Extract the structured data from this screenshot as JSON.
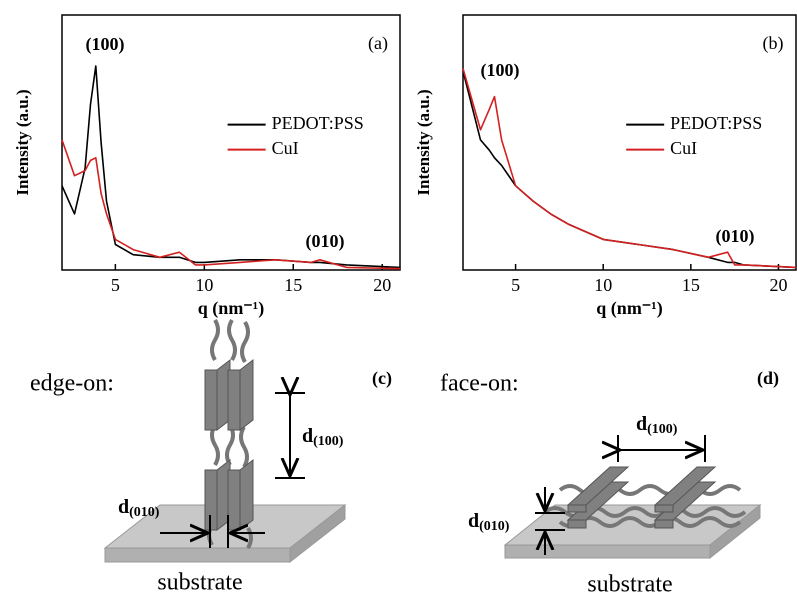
{
  "chart_data": [
    {
      "type": "line",
      "panel_label": "(a)",
      "x_label": "q (nm⁻¹)",
      "y_label": "Intensity (a.u.)",
      "xlim": [
        2,
        21
      ],
      "xticks": [
        5,
        10,
        15,
        20
      ],
      "ylim": [
        0,
        100
      ],
      "legend_position": "center-right",
      "annotations": [
        "(100)",
        "(010)"
      ],
      "x": [
        2,
        2.7,
        3.3,
        3.6,
        3.9,
        4.2,
        4.5,
        5,
        6,
        7.5,
        8.6,
        9.5,
        10,
        12,
        14,
        16,
        16.5,
        18,
        21
      ],
      "series": [
        {
          "name": "PEDOT:PSS",
          "color": "#000000",
          "values": [
            33,
            22,
            40,
            65,
            80,
            50,
            27,
            10,
            6,
            5,
            5,
            3,
            3,
            4,
            4,
            3,
            3,
            2,
            1
          ]
        },
        {
          "name": "CuI",
          "color": "#d42020",
          "values": [
            51,
            37,
            39,
            43,
            44,
            30,
            22,
            12,
            8,
            5,
            7,
            2,
            2,
            3,
            4,
            3,
            4,
            1,
            0.5
          ]
        }
      ]
    },
    {
      "type": "line",
      "panel_label": "(b)",
      "x_label": "q (nm⁻¹)",
      "y_label": "Intensity (a.u.)",
      "xlim": [
        2,
        21
      ],
      "xticks": [
        5,
        10,
        15,
        20
      ],
      "ylim": [
        0,
        100
      ],
      "legend_position": "center-right",
      "annotations": [
        "(100)",
        "(010)"
      ],
      "x": [
        2,
        3,
        3.5,
        3.8,
        4.2,
        5,
        6,
        7,
        8,
        10,
        12,
        14,
        16,
        17.1,
        17.5,
        18,
        21
      ],
      "series": [
        {
          "name": "PEDOT:PSS",
          "color": "#000000",
          "values": [
            78,
            51,
            47,
            44,
            41,
            33,
            27,
            22,
            18,
            12,
            10,
            8,
            5,
            3,
            3,
            2,
            1
          ]
        },
        {
          "name": "CuI",
          "color": "#d42020",
          "values": [
            79,
            55,
            63,
            68,
            51,
            33,
            27,
            22,
            18,
            12,
            10,
            8,
            5,
            7,
            2,
            2,
            1
          ]
        }
      ]
    }
  ],
  "diagrams": [
    {
      "label": "edge-on:",
      "panel_label": "(c)",
      "spacing_labels": [
        {
          "symbol": "d",
          "subscript": "(100)"
        },
        {
          "symbol": "d",
          "subscript": "(010)"
        }
      ],
      "substrate": "substrate"
    },
    {
      "label": "face-on:",
      "panel_label": "(d)",
      "spacing_labels": [
        {
          "symbol": "d",
          "subscript": "(100)"
        },
        {
          "symbol": "d",
          "subscript": "(010)"
        }
      ],
      "substrate": "substrate"
    }
  ]
}
